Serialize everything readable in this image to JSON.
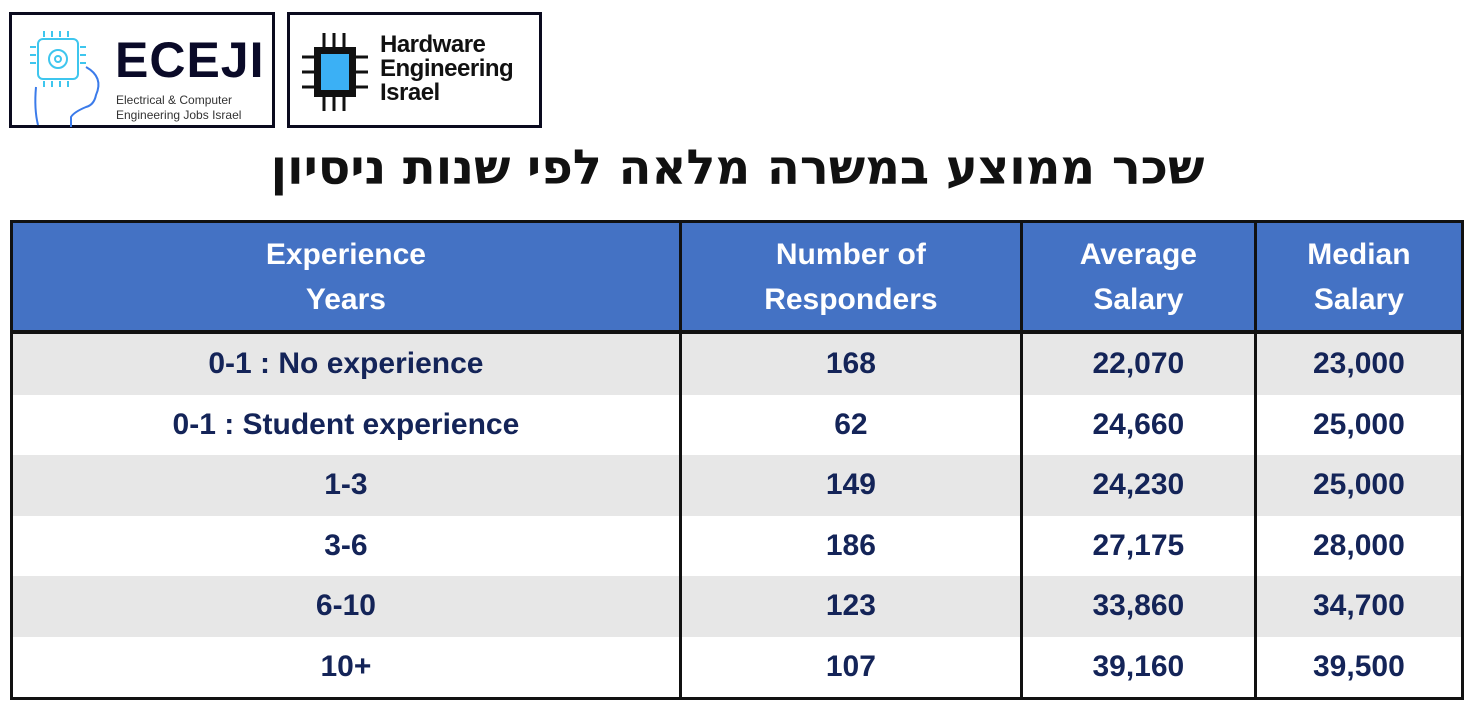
{
  "logos": {
    "eceji": {
      "name": "ECEJI",
      "tagline_line1": "Electrical & Computer",
      "tagline_line2": "Engineering Jobs Israel"
    },
    "hardware": {
      "line1": "Hardware",
      "line2": "Engineering",
      "line3": "Israel"
    }
  },
  "title": "שכר ממוצע במשרה מלאה לפי שנות ניסיון",
  "colors": {
    "header_bg": "#4472C4",
    "row_alt": "#E7E7E7",
    "cell_text": "#142458"
  },
  "table": {
    "headers": [
      {
        "line1": "Experience",
        "line2": "Years"
      },
      {
        "line1": "Number of",
        "line2": "Responders"
      },
      {
        "line1": "Average",
        "line2": "Salary"
      },
      {
        "line1": "Median",
        "line2": "Salary"
      }
    ],
    "rows": [
      [
        "0-1 : No experience",
        "168",
        "22,070",
        "23,000"
      ],
      [
        "0-1 : Student experience",
        "62",
        "24,660",
        "25,000"
      ],
      [
        "1-3",
        "149",
        "24,230",
        "25,000"
      ],
      [
        "3-6",
        "186",
        "27,175",
        "28,000"
      ],
      [
        "6-10",
        "123",
        "33,860",
        "34,700"
      ],
      [
        "10+",
        "107",
        "39,160",
        "39,500"
      ]
    ]
  }
}
